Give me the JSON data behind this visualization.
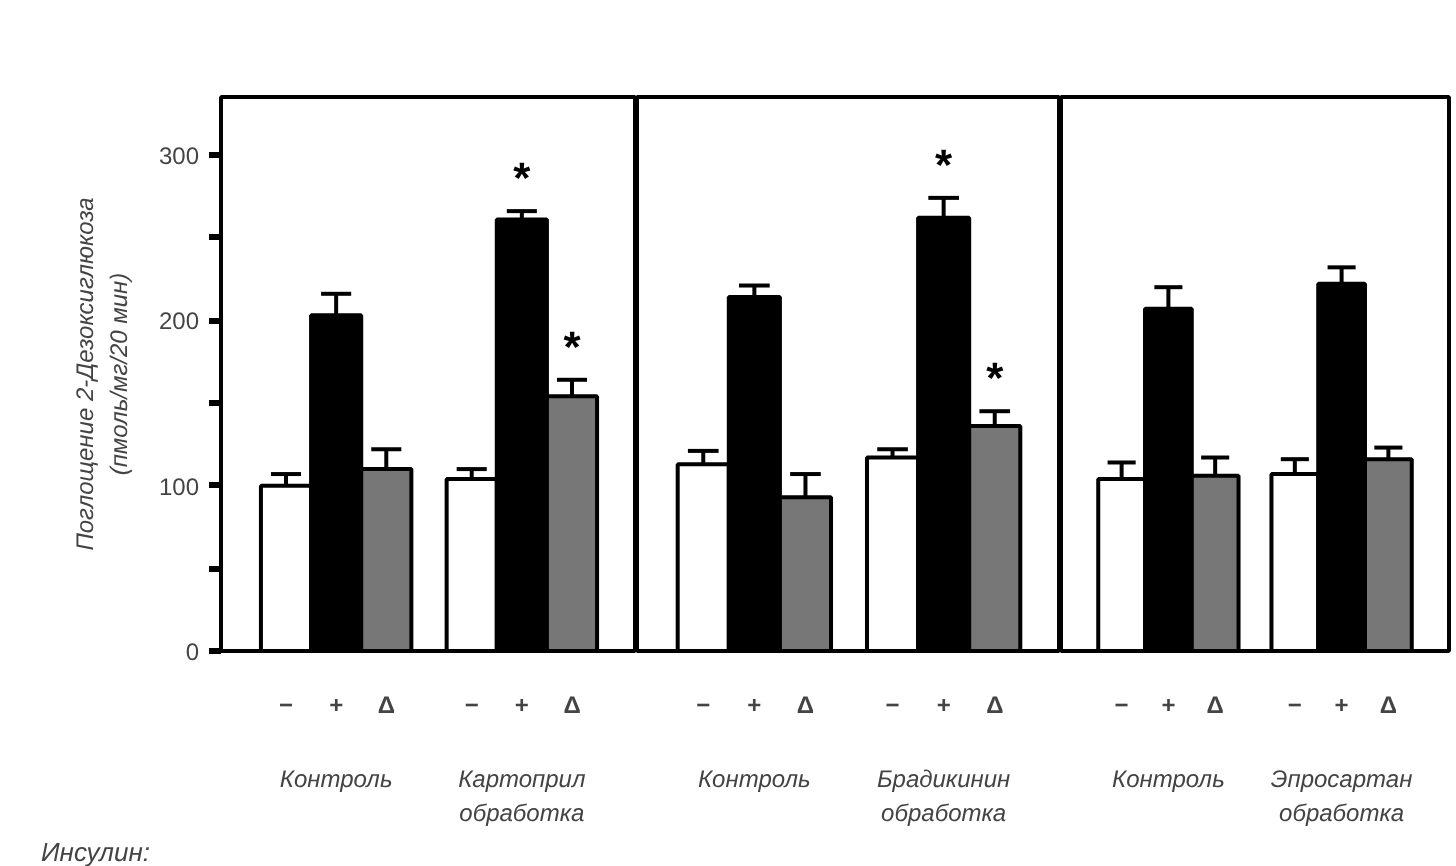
{
  "chart_data": [
    {
      "type": "bar",
      "ylabel": "Поглощение 2-Дезоксиглюкоза\n(пмоль/мг/20 мин)",
      "legend_title": "Инсулин:",
      "categories": [
        "Контроль",
        "Картоприл\nобработка"
      ],
      "series": [
        {
          "name": "−",
          "color": "#ffffff",
          "values": [
            100,
            104
          ],
          "errors": [
            [
              100,
              107
            ],
            [
              104,
              110
            ]
          ]
        },
        {
          "name": "+",
          "color": "#000000",
          "values": [
            203,
            261
          ],
          "errors": [
            [
              203,
              216
            ],
            [
              261,
              266
            ]
          ],
          "value_labels": [
            null,
            "*"
          ]
        },
        {
          "name": "Δ",
          "color": "#777777",
          "values": [
            110,
            154
          ],
          "errors": [
            [
              110,
              122
            ],
            [
              154,
              164
            ]
          ],
          "value_labels": [
            null,
            "*"
          ]
        }
      ],
      "ylim": [
        0,
        335
      ],
      "yticks": [
        0,
        {
          "value": 50,
          "label": null
        },
        100,
        {
          "value": 150,
          "label": null
        },
        200,
        {
          "value": 250,
          "label": null
        },
        300
      ],
      "grid": false,
      "legend": false
    },
    {
      "type": "bar",
      "categories": [
        "Контроль",
        "Брадикинин\nобработка"
      ],
      "series": [
        {
          "name": "−",
          "color": "#ffffff",
          "values": [
            113,
            117
          ],
          "errors": [
            [
              113,
              121
            ],
            [
              117,
              122
            ]
          ]
        },
        {
          "name": "+",
          "color": "#000000",
          "values": [
            214,
            262
          ],
          "errors": [
            [
              214,
              221
            ],
            [
              262,
              274
            ]
          ],
          "value_labels": [
            null,
            "*"
          ]
        },
        {
          "name": "Δ",
          "color": "#777777",
          "values": [
            93,
            136
          ],
          "errors": [
            [
              93,
              107
            ],
            [
              136,
              145
            ]
          ],
          "value_labels": [
            null,
            "*"
          ]
        }
      ],
      "ylim": [
        0,
        335
      ],
      "tick_labels": "x",
      "grid": false,
      "legend": false
    },
    {
      "type": "bar",
      "categories": [
        "Контроль",
        "Эпросартан\nобработка"
      ],
      "series": [
        {
          "name": "−",
          "color": "#ffffff",
          "values": [
            104,
            107
          ],
          "errors": [
            [
              104,
              114
            ],
            [
              107,
              116
            ]
          ]
        },
        {
          "name": "+",
          "color": "#000000",
          "values": [
            207,
            222
          ],
          "errors": [
            [
              207,
              220
            ],
            [
              222,
              232
            ]
          ]
        },
        {
          "name": "Δ",
          "color": "#777777",
          "values": [
            106,
            116
          ],
          "errors": [
            [
              106,
              117
            ],
            [
              116,
              123
            ]
          ]
        }
      ],
      "ylim": [
        0,
        335
      ],
      "tick_labels": "x",
      "grid": false,
      "legend": false
    }
  ]
}
